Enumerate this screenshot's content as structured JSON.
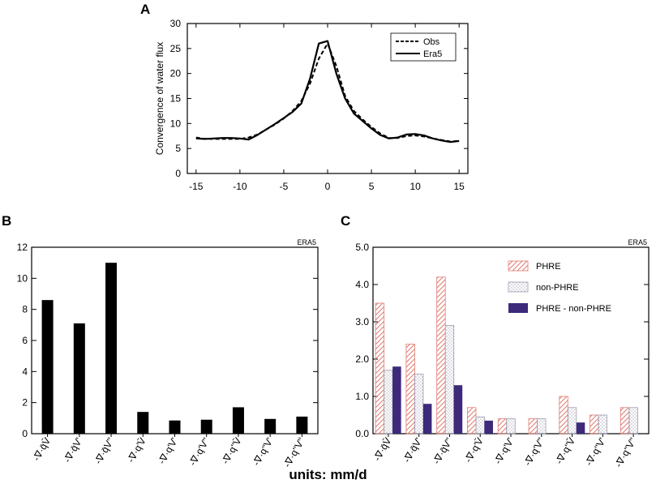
{
  "units_label": "units:  mm/d",
  "chart_data": [
    {
      "panel": "A",
      "type": "line",
      "ylabel": "Convergence of water flux",
      "xlim": [
        -16,
        16
      ],
      "ylim": [
        0,
        30
      ],
      "xticks": [
        "-15",
        "-10",
        "-5",
        "0",
        "5",
        "10",
        "15"
      ],
      "yticks": [
        "0",
        "5",
        "10",
        "15",
        "20",
        "25",
        "30"
      ],
      "legend_position": "top-right",
      "series": [
        {
          "name": "Obs",
          "style": "dashed",
          "x": [
            -15,
            -14,
            -13,
            -12,
            -11,
            -10,
            -9,
            -8,
            -7,
            -6,
            -5,
            -4,
            -3,
            -2,
            -1,
            0,
            1,
            2,
            3,
            4,
            5,
            6,
            7,
            8,
            9,
            10,
            11,
            12,
            13,
            14,
            15
          ],
          "y": [
            7.2,
            6.9,
            6.9,
            6.9,
            6.9,
            6.9,
            7.2,
            7.8,
            8.8,
            9.8,
            11.0,
            12.5,
            14.5,
            18.0,
            23.0,
            26.0,
            21.5,
            15.5,
            12.5,
            10.8,
            9.3,
            8.0,
            7.1,
            7.1,
            7.5,
            7.6,
            7.4,
            7.0,
            6.7,
            6.4,
            6.5
          ]
        },
        {
          "name": "Era5",
          "style": "solid",
          "x": [
            -15,
            -14,
            -13,
            -12,
            -11,
            -10,
            -9,
            -8,
            -7,
            -6,
            -5,
            -4,
            -3,
            -2,
            -1,
            0,
            1,
            2,
            3,
            4,
            5,
            6,
            7,
            8,
            9,
            10,
            11,
            12,
            13,
            14,
            15
          ],
          "y": [
            7.0,
            6.9,
            7.0,
            7.1,
            7.1,
            7.0,
            6.8,
            7.7,
            8.8,
            9.9,
            11.1,
            12.3,
            14.0,
            19.0,
            26.0,
            26.5,
            20.0,
            15.0,
            12.0,
            10.5,
            9.0,
            7.7,
            7.0,
            7.2,
            7.8,
            7.9,
            7.6,
            7.0,
            6.6,
            6.3,
            6.5
          ]
        }
      ]
    },
    {
      "panel": "B",
      "type": "bar",
      "corner_label": "ERA5",
      "ylim": [
        0,
        12
      ],
      "yticks": [
        "0",
        "2",
        "4",
        "6",
        "8",
        "10",
        "12"
      ],
      "categories": [
        "-∇·q̄V̄",
        "-∇·q̄V'",
        "-∇·q̄V''",
        "-∇·q'V̄",
        "-∇·q'V'",
        "-∇·q'V''",
        "-∇·q''V̄",
        "-∇·q''V'",
        "-∇·q''V''"
      ],
      "values": [
        8.6,
        7.1,
        11.0,
        1.4,
        0.85,
        0.9,
        1.7,
        0.95,
        1.1
      ],
      "color": "#000000"
    },
    {
      "panel": "C",
      "type": "bar",
      "corner_label": "ERA5",
      "ylim": [
        0,
        5
      ],
      "yticks": [
        "0.0",
        "1.0",
        "2.0",
        "3.0",
        "4.0",
        "5.0"
      ],
      "legend_position": "top-right",
      "categories": [
        "-∇·q̄V̄",
        "-∇·q̄V'",
        "-∇·q̄V''",
        "-∇·q'V̄",
        "-∇·q'V'",
        "-∇·q'V''",
        "-∇·q''V̄",
        "-∇·q''V'",
        "-∇·q''V''"
      ],
      "series": [
        {
          "name": "PHRE",
          "pattern": "hatch",
          "color": "#e07a70",
          "values": [
            3.5,
            2.4,
            4.2,
            0.7,
            0.4,
            0.4,
            1.0,
            0.5,
            0.7
          ]
        },
        {
          "name": "non-PHRE",
          "pattern": "dots",
          "color": "#9a9ab0",
          "values": [
            1.7,
            1.6,
            2.9,
            0.45,
            0.4,
            0.4,
            0.7,
            0.5,
            0.7
          ]
        },
        {
          "name": "PHRE - non-PHRE",
          "pattern": "solid",
          "color": "#3d2a7a",
          "values": [
            1.8,
            0.8,
            1.3,
            0.35,
            0,
            0,
            0.3,
            0,
            0
          ]
        }
      ]
    }
  ]
}
